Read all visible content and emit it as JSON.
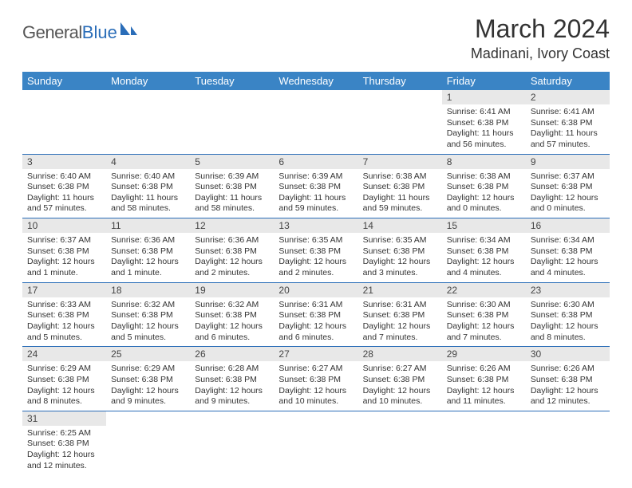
{
  "brand": {
    "part1": "General",
    "part2": "Blue"
  },
  "title": "March 2024",
  "location": "Madinani, Ivory Coast",
  "colors": {
    "header_bg": "#3a84c5",
    "accent": "#2a6db8",
    "daynum_bg": "#e8e8e8",
    "text": "#333333",
    "background": "#ffffff"
  },
  "typography": {
    "title_fontsize": 32,
    "location_fontsize": 18,
    "weekday_fontsize": 13,
    "daynum_fontsize": 12,
    "body_fontsize": 10.5
  },
  "weekdays": [
    "Sunday",
    "Monday",
    "Tuesday",
    "Wednesday",
    "Thursday",
    "Friday",
    "Saturday"
  ],
  "weeks": [
    [
      null,
      null,
      null,
      null,
      null,
      {
        "n": "1",
        "sunrise": "Sunrise: 6:41 AM",
        "sunset": "Sunset: 6:38 PM",
        "daylight": "Daylight: 11 hours and 56 minutes."
      },
      {
        "n": "2",
        "sunrise": "Sunrise: 6:41 AM",
        "sunset": "Sunset: 6:38 PM",
        "daylight": "Daylight: 11 hours and 57 minutes."
      }
    ],
    [
      {
        "n": "3",
        "sunrise": "Sunrise: 6:40 AM",
        "sunset": "Sunset: 6:38 PM",
        "daylight": "Daylight: 11 hours and 57 minutes."
      },
      {
        "n": "4",
        "sunrise": "Sunrise: 6:40 AM",
        "sunset": "Sunset: 6:38 PM",
        "daylight": "Daylight: 11 hours and 58 minutes."
      },
      {
        "n": "5",
        "sunrise": "Sunrise: 6:39 AM",
        "sunset": "Sunset: 6:38 PM",
        "daylight": "Daylight: 11 hours and 58 minutes."
      },
      {
        "n": "6",
        "sunrise": "Sunrise: 6:39 AM",
        "sunset": "Sunset: 6:38 PM",
        "daylight": "Daylight: 11 hours and 59 minutes."
      },
      {
        "n": "7",
        "sunrise": "Sunrise: 6:38 AM",
        "sunset": "Sunset: 6:38 PM",
        "daylight": "Daylight: 11 hours and 59 minutes."
      },
      {
        "n": "8",
        "sunrise": "Sunrise: 6:38 AM",
        "sunset": "Sunset: 6:38 PM",
        "daylight": "Daylight: 12 hours and 0 minutes."
      },
      {
        "n": "9",
        "sunrise": "Sunrise: 6:37 AM",
        "sunset": "Sunset: 6:38 PM",
        "daylight": "Daylight: 12 hours and 0 minutes."
      }
    ],
    [
      {
        "n": "10",
        "sunrise": "Sunrise: 6:37 AM",
        "sunset": "Sunset: 6:38 PM",
        "daylight": "Daylight: 12 hours and 1 minute."
      },
      {
        "n": "11",
        "sunrise": "Sunrise: 6:36 AM",
        "sunset": "Sunset: 6:38 PM",
        "daylight": "Daylight: 12 hours and 1 minute."
      },
      {
        "n": "12",
        "sunrise": "Sunrise: 6:36 AM",
        "sunset": "Sunset: 6:38 PM",
        "daylight": "Daylight: 12 hours and 2 minutes."
      },
      {
        "n": "13",
        "sunrise": "Sunrise: 6:35 AM",
        "sunset": "Sunset: 6:38 PM",
        "daylight": "Daylight: 12 hours and 2 minutes."
      },
      {
        "n": "14",
        "sunrise": "Sunrise: 6:35 AM",
        "sunset": "Sunset: 6:38 PM",
        "daylight": "Daylight: 12 hours and 3 minutes."
      },
      {
        "n": "15",
        "sunrise": "Sunrise: 6:34 AM",
        "sunset": "Sunset: 6:38 PM",
        "daylight": "Daylight: 12 hours and 4 minutes."
      },
      {
        "n": "16",
        "sunrise": "Sunrise: 6:34 AM",
        "sunset": "Sunset: 6:38 PM",
        "daylight": "Daylight: 12 hours and 4 minutes."
      }
    ],
    [
      {
        "n": "17",
        "sunrise": "Sunrise: 6:33 AM",
        "sunset": "Sunset: 6:38 PM",
        "daylight": "Daylight: 12 hours and 5 minutes."
      },
      {
        "n": "18",
        "sunrise": "Sunrise: 6:32 AM",
        "sunset": "Sunset: 6:38 PM",
        "daylight": "Daylight: 12 hours and 5 minutes."
      },
      {
        "n": "19",
        "sunrise": "Sunrise: 6:32 AM",
        "sunset": "Sunset: 6:38 PM",
        "daylight": "Daylight: 12 hours and 6 minutes."
      },
      {
        "n": "20",
        "sunrise": "Sunrise: 6:31 AM",
        "sunset": "Sunset: 6:38 PM",
        "daylight": "Daylight: 12 hours and 6 minutes."
      },
      {
        "n": "21",
        "sunrise": "Sunrise: 6:31 AM",
        "sunset": "Sunset: 6:38 PM",
        "daylight": "Daylight: 12 hours and 7 minutes."
      },
      {
        "n": "22",
        "sunrise": "Sunrise: 6:30 AM",
        "sunset": "Sunset: 6:38 PM",
        "daylight": "Daylight: 12 hours and 7 minutes."
      },
      {
        "n": "23",
        "sunrise": "Sunrise: 6:30 AM",
        "sunset": "Sunset: 6:38 PM",
        "daylight": "Daylight: 12 hours and 8 minutes."
      }
    ],
    [
      {
        "n": "24",
        "sunrise": "Sunrise: 6:29 AM",
        "sunset": "Sunset: 6:38 PM",
        "daylight": "Daylight: 12 hours and 8 minutes."
      },
      {
        "n": "25",
        "sunrise": "Sunrise: 6:29 AM",
        "sunset": "Sunset: 6:38 PM",
        "daylight": "Daylight: 12 hours and 9 minutes."
      },
      {
        "n": "26",
        "sunrise": "Sunrise: 6:28 AM",
        "sunset": "Sunset: 6:38 PM",
        "daylight": "Daylight: 12 hours and 9 minutes."
      },
      {
        "n": "27",
        "sunrise": "Sunrise: 6:27 AM",
        "sunset": "Sunset: 6:38 PM",
        "daylight": "Daylight: 12 hours and 10 minutes."
      },
      {
        "n": "28",
        "sunrise": "Sunrise: 6:27 AM",
        "sunset": "Sunset: 6:38 PM",
        "daylight": "Daylight: 12 hours and 10 minutes."
      },
      {
        "n": "29",
        "sunrise": "Sunrise: 6:26 AM",
        "sunset": "Sunset: 6:38 PM",
        "daylight": "Daylight: 12 hours and 11 minutes."
      },
      {
        "n": "30",
        "sunrise": "Sunrise: 6:26 AM",
        "sunset": "Sunset: 6:38 PM",
        "daylight": "Daylight: 12 hours and 12 minutes."
      }
    ],
    [
      {
        "n": "31",
        "sunrise": "Sunrise: 6:25 AM",
        "sunset": "Sunset: 6:38 PM",
        "daylight": "Daylight: 12 hours and 12 minutes."
      },
      null,
      null,
      null,
      null,
      null,
      null
    ]
  ]
}
